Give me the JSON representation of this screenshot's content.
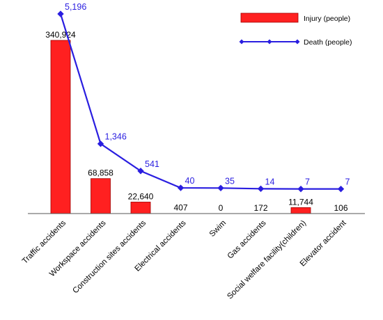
{
  "chart_data": {
    "type": "bar",
    "categories": [
      "Traffic accidents",
      "Workspace accidents",
      "Construction sites accidents",
      "Electrical accidents",
      "Swim",
      "Gas accidents",
      "Social welfare facility(children)",
      "Elevator accident"
    ],
    "series": [
      {
        "name": "Injury (people)",
        "type": "bar",
        "values": [
          340924,
          68858,
          22640,
          407,
          0,
          172,
          11744,
          106
        ],
        "labels": [
          "340,924",
          "68,858",
          "22,640",
          "407",
          "0",
          "172",
          "11,744",
          "106"
        ],
        "color": "#ff2020"
      },
      {
        "name": "Death (people)",
        "type": "line",
        "values": [
          5196,
          1346,
          541,
          40,
          35,
          14,
          7,
          7
        ],
        "labels": [
          "5,196",
          "1,346",
          "541",
          "40",
          "35",
          "14",
          "7",
          "7"
        ],
        "color": "#2a1ee0"
      }
    ],
    "title": "",
    "xlabel": "",
    "ylabel": "",
    "ylim_injury": [
      0,
      420000
    ],
    "ylim_death": [
      0,
      5800
    ],
    "grid": false,
    "legend_position": "top-right",
    "colors": {
      "bar": "#ff2020",
      "bar_edge": "#a00000",
      "line": "#2a1ee0",
      "marker": "#2a1ee0"
    }
  }
}
